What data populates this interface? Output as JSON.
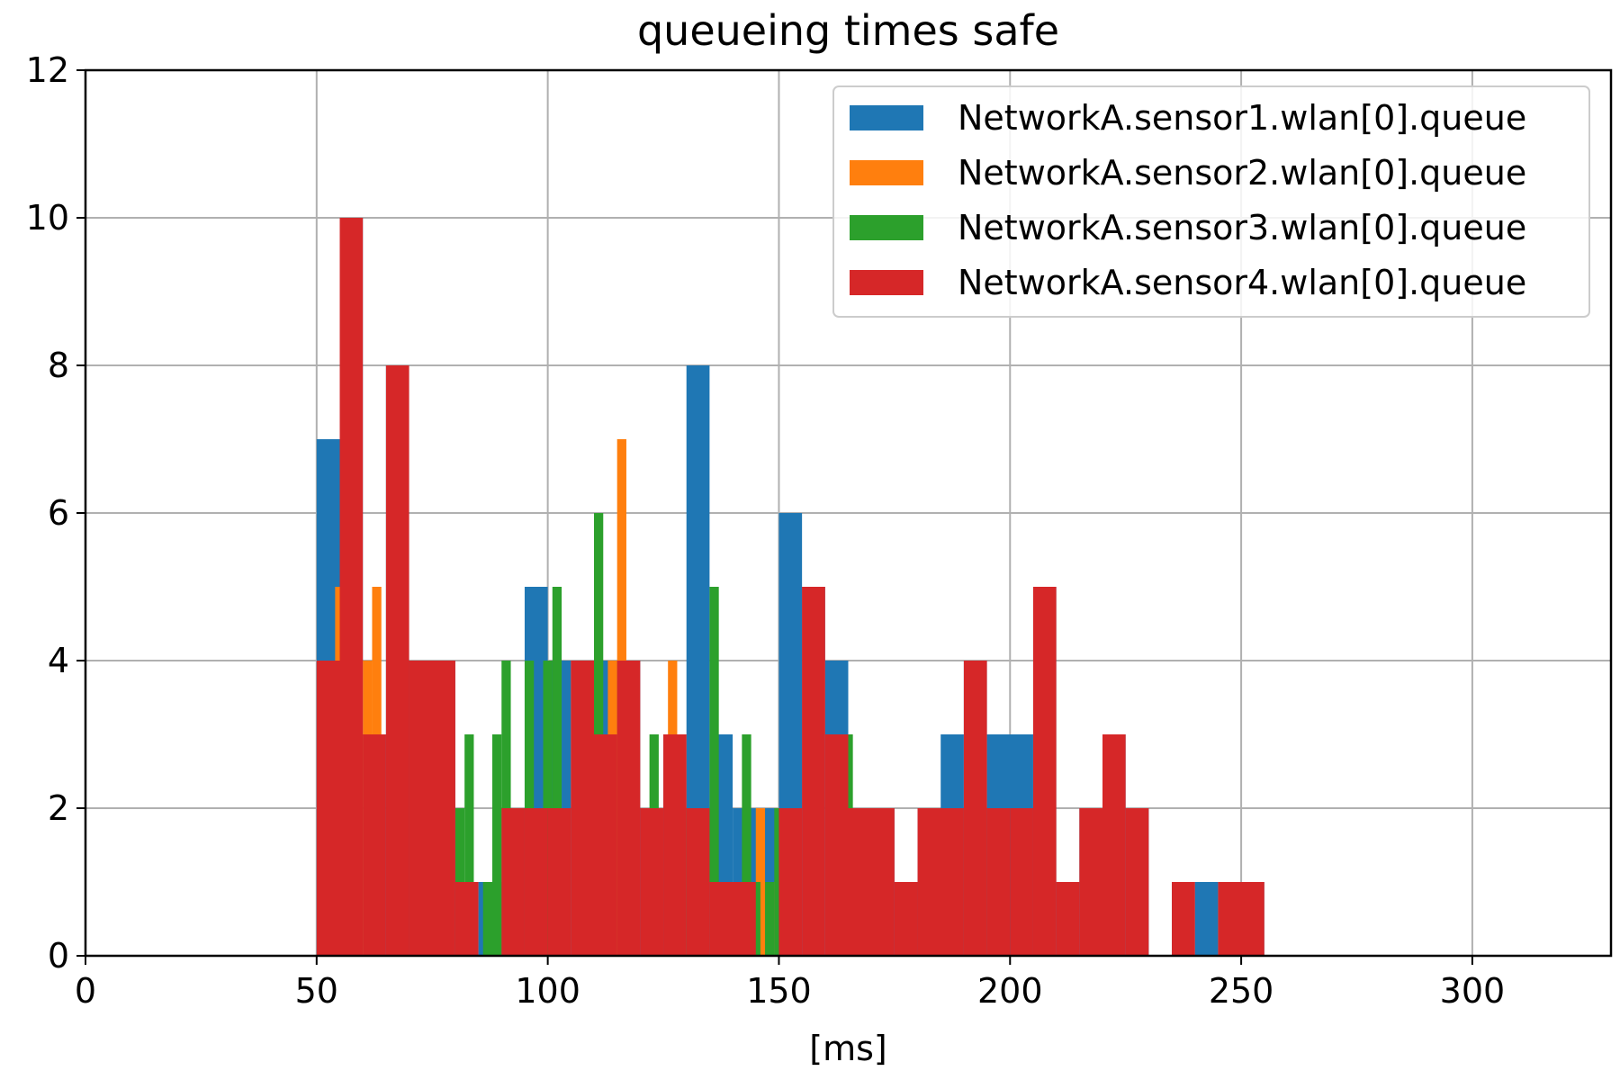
{
  "chart_data": {
    "type": "bar",
    "subtype": "overlapping histogram",
    "title": "queueing times safe",
    "xlabel": "[ms]",
    "ylabel": "",
    "xlim": [
      0,
      330
    ],
    "ylim": [
      0,
      12
    ],
    "xticks": [
      0,
      50,
      100,
      150,
      200,
      250,
      300
    ],
    "yticks": [
      0,
      2,
      4,
      6,
      8,
      10,
      12
    ],
    "grid": true,
    "legend_position": "top-right",
    "series": [
      {
        "name": "NetworkA.sensor1.wlan[0].queue",
        "color": "#1f77b4",
        "bins": [
          {
            "x0": 50,
            "x1": 55,
            "count": 7
          },
          {
            "x0": 55,
            "x1": 60,
            "count": 10
          },
          {
            "x0": 60,
            "x1": 65,
            "count": 3
          },
          {
            "x0": 65,
            "x1": 70,
            "count": 8
          },
          {
            "x0": 70,
            "x1": 80,
            "count": 4
          },
          {
            "x0": 80,
            "x1": 85,
            "count": 1
          },
          {
            "x0": 85,
            "x1": 90,
            "count": 1
          },
          {
            "x0": 90,
            "x1": 95,
            "count": 2
          },
          {
            "x0": 95,
            "x1": 100,
            "count": 5
          },
          {
            "x0": 100,
            "x1": 105,
            "count": 4
          },
          {
            "x0": 105,
            "x1": 120,
            "count": 4
          },
          {
            "x0": 120,
            "x1": 125,
            "count": 2
          },
          {
            "x0": 125,
            "x1": 130,
            "count": 3
          },
          {
            "x0": 130,
            "x1": 135,
            "count": 8
          },
          {
            "x0": 135,
            "x1": 140,
            "count": 3
          },
          {
            "x0": 140,
            "x1": 150,
            "count": 2
          },
          {
            "x0": 150,
            "x1": 155,
            "count": 6
          },
          {
            "x0": 155,
            "x1": 160,
            "count": 5
          },
          {
            "x0": 160,
            "x1": 165,
            "count": 4
          },
          {
            "x0": 165,
            "x1": 170,
            "count": 2
          },
          {
            "x0": 170,
            "x1": 175,
            "count": 2
          },
          {
            "x0": 175,
            "x1": 180,
            "count": 1
          },
          {
            "x0": 180,
            "x1": 185,
            "count": 2
          },
          {
            "x0": 185,
            "x1": 190,
            "count": 3
          },
          {
            "x0": 190,
            "x1": 195,
            "count": 4
          },
          {
            "x0": 195,
            "x1": 205,
            "count": 3
          },
          {
            "x0": 205,
            "x1": 210,
            "count": 5
          },
          {
            "x0": 210,
            "x1": 215,
            "count": 1
          },
          {
            "x0": 215,
            "x1": 220,
            "count": 2
          },
          {
            "x0": 220,
            "x1": 225,
            "count": 3
          },
          {
            "x0": 225,
            "x1": 230,
            "count": 2
          },
          {
            "x0": 235,
            "x1": 240,
            "count": 1
          },
          {
            "x0": 240,
            "x1": 245,
            "count": 1
          },
          {
            "x0": 245,
            "x1": 255,
            "count": 1
          }
        ]
      },
      {
        "name": "NetworkA.sensor2.wlan[0].queue",
        "color": "#ff7f0e",
        "bins": [
          {
            "x0": 54,
            "x1": 55,
            "count": 5
          },
          {
            "x0": 60,
            "x1": 62,
            "count": 4
          },
          {
            "x0": 62,
            "x1": 64,
            "count": 5
          },
          {
            "x0": 113,
            "x1": 115,
            "count": 4
          },
          {
            "x0": 115,
            "x1": 117,
            "count": 7
          },
          {
            "x0": 126,
            "x1": 128,
            "count": 4
          },
          {
            "x0": 131,
            "x1": 133,
            "count": 1
          },
          {
            "x0": 145,
            "x1": 147,
            "count": 2
          },
          {
            "x0": 147,
            "x1": 149,
            "count": 1
          }
        ]
      },
      {
        "name": "NetworkA.sensor3.wlan[0].queue",
        "color": "#2ca02c",
        "bins": [
          {
            "x0": 80,
            "x1": 82,
            "count": 2
          },
          {
            "x0": 82,
            "x1": 84,
            "count": 3
          },
          {
            "x0": 86,
            "x1": 88,
            "count": 1
          },
          {
            "x0": 88,
            "x1": 90,
            "count": 3
          },
          {
            "x0": 90,
            "x1": 92,
            "count": 4
          },
          {
            "x0": 95,
            "x1": 97,
            "count": 4
          },
          {
            "x0": 97,
            "x1": 99,
            "count": 1
          },
          {
            "x0": 99,
            "x1": 101,
            "count": 4
          },
          {
            "x0": 101,
            "x1": 103,
            "count": 5
          },
          {
            "x0": 110,
            "x1": 112,
            "count": 6
          },
          {
            "x0": 112,
            "x1": 114,
            "count": 3
          },
          {
            "x0": 122,
            "x1": 124,
            "count": 3
          },
          {
            "x0": 126,
            "x1": 128,
            "count": 2
          },
          {
            "x0": 130,
            "x1": 132,
            "count": 2
          },
          {
            "x0": 135,
            "x1": 137,
            "count": 5
          },
          {
            "x0": 137,
            "x1": 139,
            "count": 1
          },
          {
            "x0": 142,
            "x1": 144,
            "count": 3
          },
          {
            "x0": 144,
            "x1": 146,
            "count": 1
          },
          {
            "x0": 147,
            "x1": 149,
            "count": 1
          },
          {
            "x0": 149,
            "x1": 150,
            "count": 2
          },
          {
            "x0": 165,
            "x1": 166,
            "count": 3
          }
        ]
      },
      {
        "name": "NetworkA.sensor4.wlan[0].queue",
        "color": "#d62728",
        "bins": [
          {
            "x0": 50,
            "x1": 55,
            "count": 4
          },
          {
            "x0": 55,
            "x1": 60,
            "count": 10
          },
          {
            "x0": 60,
            "x1": 65,
            "count": 3
          },
          {
            "x0": 65,
            "x1": 70,
            "count": 8
          },
          {
            "x0": 70,
            "x1": 80,
            "count": 4
          },
          {
            "x0": 80,
            "x1": 85,
            "count": 1
          },
          {
            "x0": 85,
            "x1": 90,
            "count": 0
          },
          {
            "x0": 90,
            "x1": 95,
            "count": 2
          },
          {
            "x0": 95,
            "x1": 100,
            "count": 2
          },
          {
            "x0": 100,
            "x1": 105,
            "count": 2
          },
          {
            "x0": 105,
            "x1": 110,
            "count": 4
          },
          {
            "x0": 110,
            "x1": 115,
            "count": 3
          },
          {
            "x0": 115,
            "x1": 120,
            "count": 4
          },
          {
            "x0": 120,
            "x1": 125,
            "count": 2
          },
          {
            "x0": 125,
            "x1": 130,
            "count": 3
          },
          {
            "x0": 130,
            "x1": 135,
            "count": 2
          },
          {
            "x0": 135,
            "x1": 145,
            "count": 1
          },
          {
            "x0": 145,
            "x1": 150,
            "count": 0
          },
          {
            "x0": 150,
            "x1": 155,
            "count": 2
          },
          {
            "x0": 155,
            "x1": 160,
            "count": 5
          },
          {
            "x0": 160,
            "x1": 165,
            "count": 3
          },
          {
            "x0": 165,
            "x1": 175,
            "count": 2
          },
          {
            "x0": 175,
            "x1": 180,
            "count": 1
          },
          {
            "x0": 180,
            "x1": 190,
            "count": 2
          },
          {
            "x0": 190,
            "x1": 195,
            "count": 4
          },
          {
            "x0": 195,
            "x1": 200,
            "count": 2
          },
          {
            "x0": 200,
            "x1": 205,
            "count": 2
          },
          {
            "x0": 205,
            "x1": 210,
            "count": 5
          },
          {
            "x0": 210,
            "x1": 215,
            "count": 1
          },
          {
            "x0": 215,
            "x1": 220,
            "count": 2
          },
          {
            "x0": 220,
            "x1": 225,
            "count": 3
          },
          {
            "x0": 225,
            "x1": 230,
            "count": 2
          },
          {
            "x0": 235,
            "x1": 240,
            "count": 1
          },
          {
            "x0": 240,
            "x1": 245,
            "count": 0
          },
          {
            "x0": 245,
            "x1": 255,
            "count": 1
          }
        ]
      }
    ]
  }
}
